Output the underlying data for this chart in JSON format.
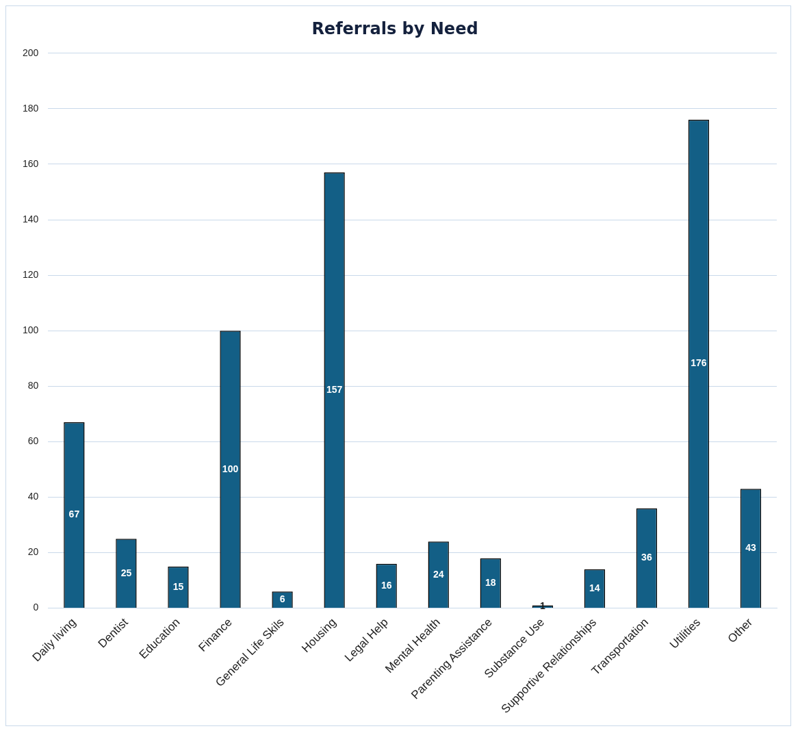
{
  "chart_data": {
    "type": "bar",
    "title": "Referrals by Need",
    "categories": [
      "Daily living",
      "Dentist",
      "Education",
      "Finance",
      "General Life Skils",
      "Housing",
      "Legal Help",
      "Mental Health",
      "Parenting Assistance",
      "Substance Use",
      "Supportive Relationships",
      "Transportation",
      "Utilities",
      "Other"
    ],
    "values": [
      67,
      25,
      15,
      100,
      6,
      157,
      16,
      24,
      18,
      1,
      14,
      36,
      176,
      43
    ],
    "color": "#135f86",
    "ylim": [
      0,
      200
    ],
    "yticks": [
      0,
      20,
      40,
      60,
      80,
      100,
      120,
      140,
      160,
      180,
      200
    ],
    "grid": "y",
    "legend": false,
    "data_labels": true
  }
}
